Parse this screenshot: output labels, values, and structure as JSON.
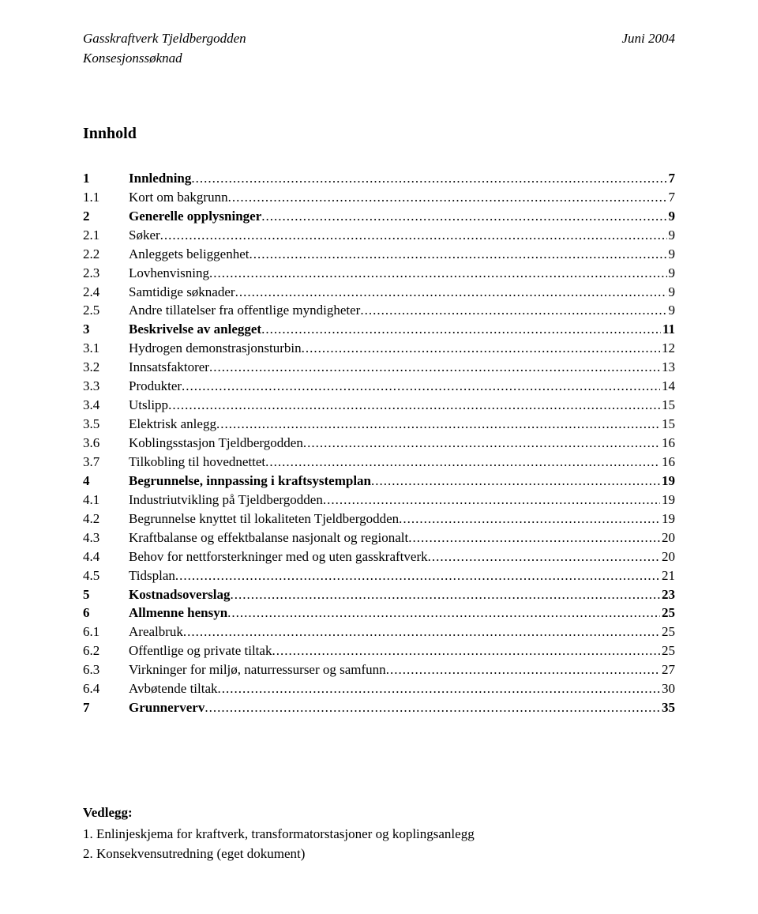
{
  "header": {
    "left": "Gasskraftverk Tjeldbergodden",
    "right": "Juni 2004",
    "sub": "Konsesjonssøknad"
  },
  "toc_title": "Innhold",
  "toc": [
    {
      "num": "1",
      "label": "Innledning",
      "page": "7",
      "level": 1
    },
    {
      "num": "1.1",
      "label": "Kort om bakgrunn",
      "page": "7",
      "level": 2
    },
    {
      "num": "2",
      "label": "Generelle opplysninger",
      "page": "9",
      "level": 1
    },
    {
      "num": "2.1",
      "label": "Søker",
      "page": "9",
      "level": 2
    },
    {
      "num": "2.2",
      "label": "Anleggets beliggenhet",
      "page": "9",
      "level": 2
    },
    {
      "num": "2.3",
      "label": "Lovhenvisning",
      "page": "9",
      "level": 2
    },
    {
      "num": "2.4",
      "label": "Samtidige søknader",
      "page": "9",
      "level": 2
    },
    {
      "num": "2.5",
      "label": "Andre tillatelser fra offentlige myndigheter",
      "page": "9",
      "level": 2
    },
    {
      "num": "3",
      "label": "Beskrivelse av anlegget",
      "page": "11",
      "level": 1
    },
    {
      "num": "3.1",
      "label": "Hydrogen demonstrasjonsturbin",
      "page": "12",
      "level": 2
    },
    {
      "num": "3.2",
      "label": "Innsatsfaktorer",
      "page": "13",
      "level": 2
    },
    {
      "num": "3.3",
      "label": "Produkter",
      "page": "14",
      "level": 2
    },
    {
      "num": "3.4",
      "label": "Utslipp",
      "page": "15",
      "level": 2
    },
    {
      "num": "3.5",
      "label": "Elektrisk anlegg",
      "page": "15",
      "level": 2
    },
    {
      "num": "3.6",
      "label": "Koblingsstasjon Tjeldbergodden",
      "page": "16",
      "level": 2
    },
    {
      "num": "3.7",
      "label": "Tilkobling til hovednettet",
      "page": "16",
      "level": 2
    },
    {
      "num": "4",
      "label": "Begrunnelse, innpassing i kraftsystemplan",
      "page": "19",
      "level": 1
    },
    {
      "num": "4.1",
      "label": "Industriutvikling på Tjeldbergodden",
      "page": "19",
      "level": 2
    },
    {
      "num": "4.2",
      "label": "Begrunnelse knyttet til lokaliteten Tjeldbergodden",
      "page": "19",
      "level": 2
    },
    {
      "num": "4.3",
      "label": "Kraftbalanse og effektbalanse nasjonalt og regionalt",
      "page": "20",
      "level": 2
    },
    {
      "num": "4.4",
      "label": "Behov for nettforsterkninger med og uten gasskraftverk",
      "page": "20",
      "level": 2
    },
    {
      "num": "4.5",
      "label": "Tidsplan",
      "page": "21",
      "level": 2
    },
    {
      "num": "5",
      "label": "Kostnadsoverslag",
      "page": "23",
      "level": 1
    },
    {
      "num": "6",
      "label": "Allmenne hensyn",
      "page": "25",
      "level": 1
    },
    {
      "num": "6.1",
      "label": "Arealbruk",
      "page": "25",
      "level": 2
    },
    {
      "num": "6.2",
      "label": "Offentlige og private tiltak",
      "page": "25",
      "level": 2
    },
    {
      "num": "6.3",
      "label": "Virkninger for miljø, naturressurser og samfunn",
      "page": "27",
      "level": 2
    },
    {
      "num": "6.4",
      "label": "Avbøtende tiltak",
      "page": "30",
      "level": 2
    },
    {
      "num": "7",
      "label": "Grunnerverv",
      "page": "35",
      "level": 1
    }
  ],
  "vedlegg": {
    "title": "Vedlegg:",
    "lines": [
      "1. Enlinjeskjema for kraftverk, transformatorstasjoner og koplingsanlegg",
      "2. Konsekvensutredning (eget dokument)"
    ]
  }
}
